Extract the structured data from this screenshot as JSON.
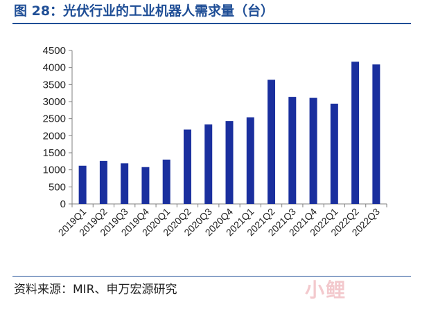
{
  "header": {
    "title": "图 28：光伏行业的工业机器人需求量（台）"
  },
  "footer": {
    "source": "资料来源：MIR、申万宏源研究",
    "watermark": "小鲤"
  },
  "colors": {
    "bar": "#1a2f9e",
    "title": "#1f4e96",
    "axis": "#7f7f7f"
  },
  "chart_data": {
    "type": "bar",
    "title": "",
    "xlabel": "",
    "ylabel": "",
    "ylim": [
      0,
      4500
    ],
    "yticks": [
      0,
      500,
      1000,
      1500,
      2000,
      2500,
      3000,
      3500,
      4000,
      4500
    ],
    "grid": false,
    "legend": "none",
    "categories": [
      "2019Q1",
      "2019Q2",
      "2019Q3",
      "2019Q4",
      "2020Q1",
      "2020Q2",
      "2020Q3",
      "2020Q4",
      "2021Q1",
      "2021Q2",
      "2021Q3",
      "2021Q4",
      "2022Q1",
      "2022Q2",
      "2022Q3"
    ],
    "values": [
      1120,
      1260,
      1190,
      1080,
      1300,
      2180,
      2330,
      2430,
      2540,
      3640,
      3140,
      3110,
      2940,
      4170,
      4090
    ]
  }
}
